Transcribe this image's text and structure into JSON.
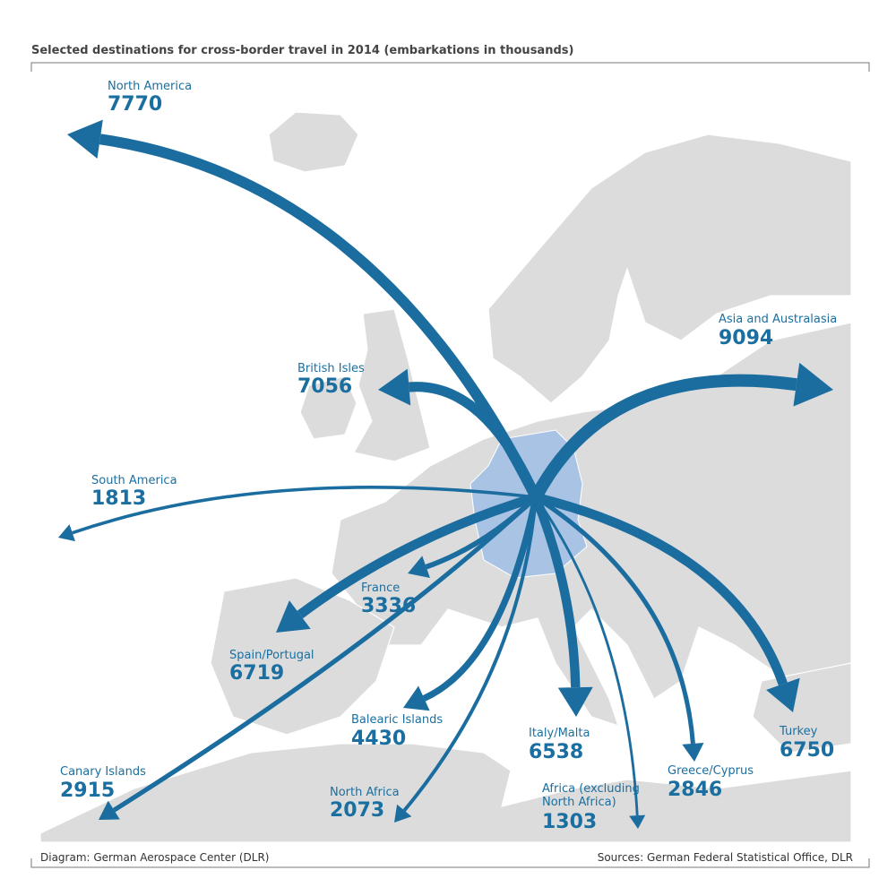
{
  "header": {
    "title": "Selected destinations for cross-border travel in 2014 (embarkations in thousands)"
  },
  "destinations": [
    {
      "name": "North America",
      "value": 7770
    },
    {
      "name": "British Isles",
      "value": 7056
    },
    {
      "name": "South America",
      "value": 1813
    },
    {
      "name": "France",
      "value": 3336
    },
    {
      "name": "Spain/Portugal",
      "value": 6719
    },
    {
      "name": "Balearic Islands",
      "value": 4430
    },
    {
      "name": "Canary Islands",
      "value": 2915
    },
    {
      "name": "North Africa",
      "value": 2073
    },
    {
      "name": "Italy/Malta",
      "value": 6538
    },
    {
      "name": "Africa (excluding North Africa)",
      "value": 1303
    },
    {
      "name": "Greece/Cyprus",
      "value": 2846
    },
    {
      "name": "Turkey",
      "value": 6750
    },
    {
      "name": "Asia and Australasia",
      "value": 9094
    }
  ],
  "footer": {
    "left": "Diagram: German Aerospace Center (DLR)",
    "right": "Sources: German Federal Statistical Office, DLR"
  }
}
